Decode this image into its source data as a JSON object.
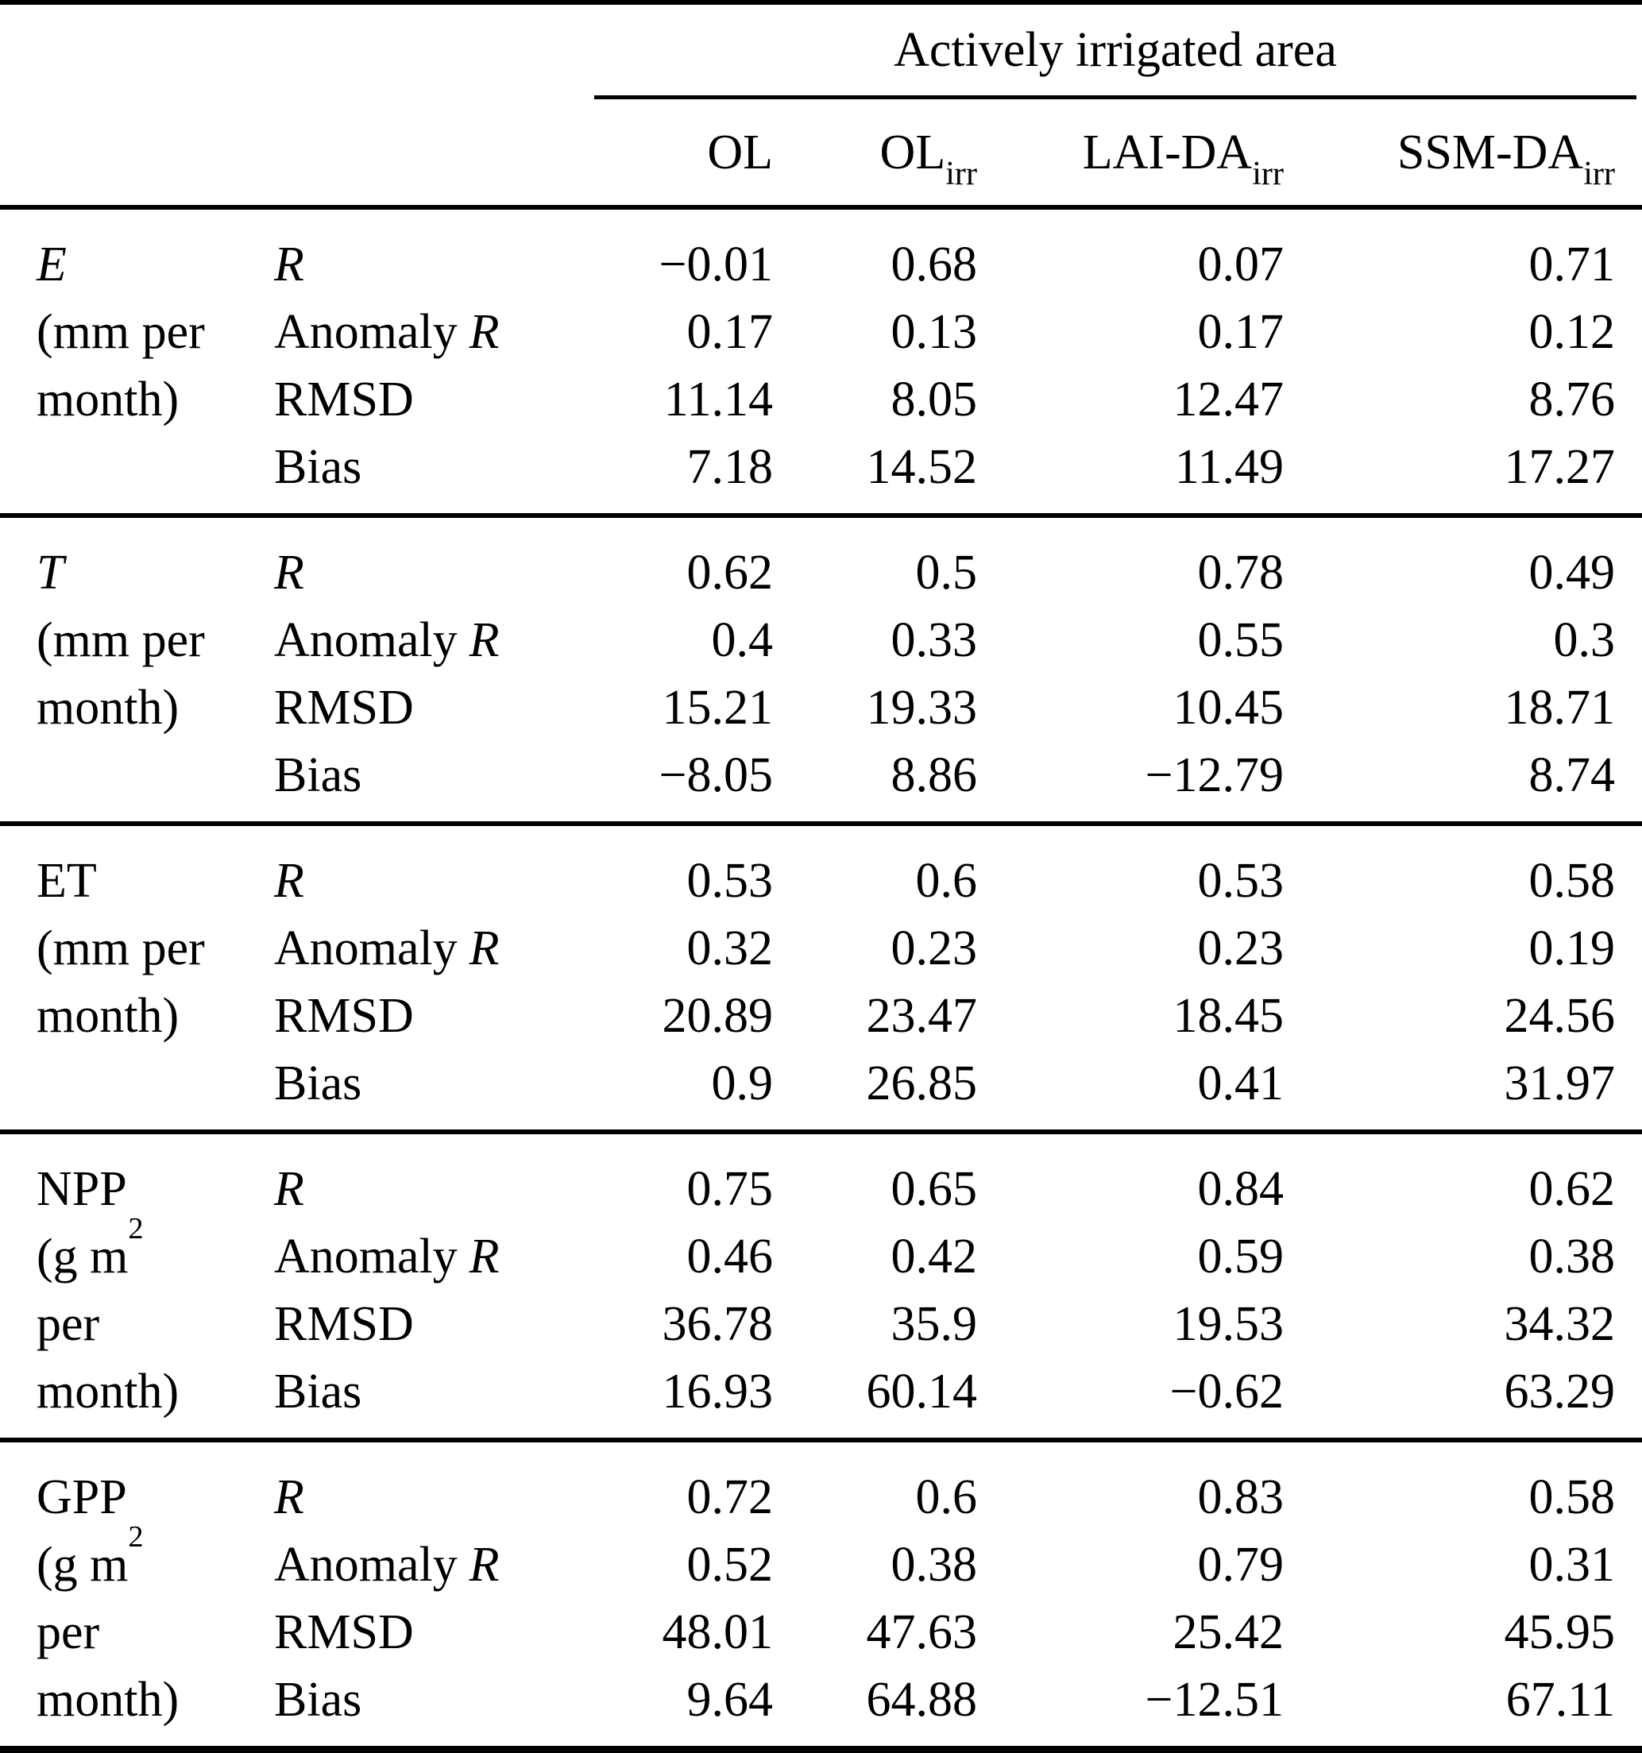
{
  "table": {
    "span_header": "Actively irrigated area",
    "columns": [
      {
        "base": "OL",
        "sub": ""
      },
      {
        "base": "OL",
        "sub": "irr"
      },
      {
        "base": "LAI-DA",
        "sub": "irr"
      },
      {
        "base": "SSM-DA",
        "sub": "irr"
      }
    ],
    "metric_labels": {
      "r": "R",
      "anomaly_prefix": "Anomaly",
      "anomaly_r": "R",
      "rmsd": "RMSD",
      "bias": "Bias"
    },
    "groups": [
      {
        "label1": "E",
        "label2": "(mm per",
        "label2_sup": "",
        "label3": "month)",
        "label4": "",
        "values": [
          [
            "−0.01",
            "0.68",
            "0.07",
            "0.71"
          ],
          [
            "0.17",
            "0.13",
            "0.17",
            "0.12"
          ],
          [
            "11.14",
            "8.05",
            "12.47",
            "8.76"
          ],
          [
            "7.18",
            "14.52",
            "11.49",
            "17.27"
          ]
        ]
      },
      {
        "label1": "T",
        "label2": "(mm per",
        "label2_sup": "",
        "label3": "month)",
        "label4": "",
        "values": [
          [
            "0.62",
            "0.5",
            "0.78",
            "0.49"
          ],
          [
            "0.4",
            "0.33",
            "0.55",
            "0.3"
          ],
          [
            "15.21",
            "19.33",
            "10.45",
            "18.71"
          ],
          [
            "−8.05",
            "8.86",
            "−12.79",
            "8.74"
          ]
        ]
      },
      {
        "label1": "ET",
        "label2": "(mm per",
        "label2_sup": "",
        "label3": "month)",
        "label4": "",
        "values": [
          [
            "0.53",
            "0.6",
            "0.53",
            "0.58"
          ],
          [
            "0.32",
            "0.23",
            "0.23",
            "0.19"
          ],
          [
            "20.89",
            "23.47",
            "18.45",
            "24.56"
          ],
          [
            "0.9",
            "26.85",
            "0.41",
            "31.97"
          ]
        ]
      },
      {
        "label1": "NPP",
        "label2": "(g m",
        "label2_sup": "2",
        "label3": "per",
        "label4": "month)",
        "values": [
          [
            "0.75",
            "0.65",
            "0.84",
            "0.62"
          ],
          [
            "0.46",
            "0.42",
            "0.59",
            "0.38"
          ],
          [
            "36.78",
            "35.9",
            "19.53",
            "34.32"
          ],
          [
            "16.93",
            "60.14",
            "−0.62",
            "63.29"
          ]
        ]
      },
      {
        "label1": "GPP",
        "label2": "(g m",
        "label2_sup": "2",
        "label3": "per",
        "label4": "month)",
        "values": [
          [
            "0.72",
            "0.6",
            "0.83",
            "0.58"
          ],
          [
            "0.52",
            "0.38",
            "0.79",
            "0.31"
          ],
          [
            "48.01",
            "47.63",
            "25.42",
            "45.95"
          ],
          [
            "9.64",
            "64.88",
            "−12.51",
            "67.11"
          ]
        ]
      }
    ]
  }
}
